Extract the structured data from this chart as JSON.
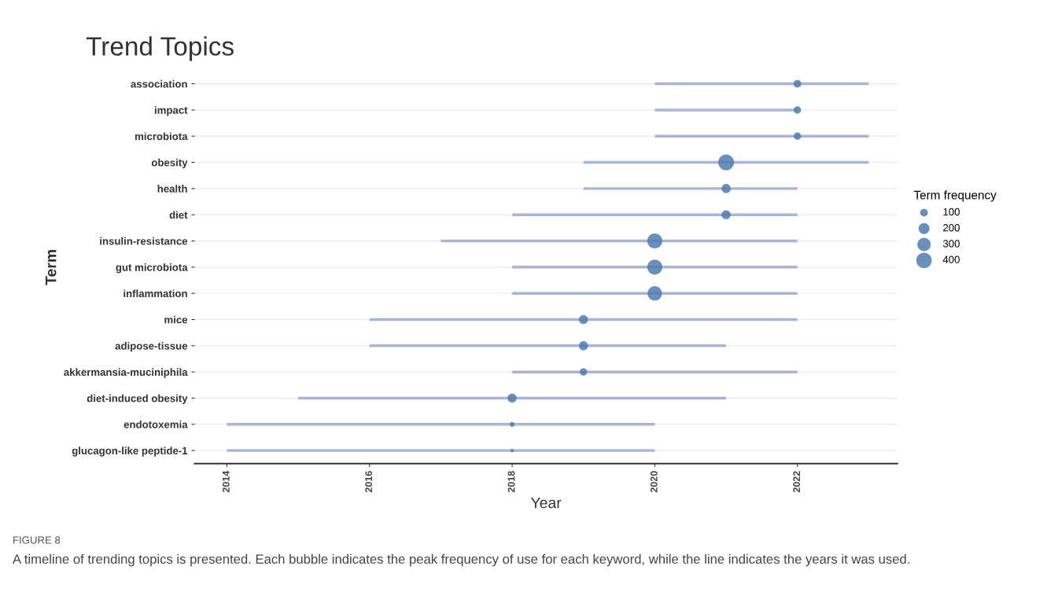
{
  "chart_data": {
    "type": "bubble",
    "title": "Trend Topics",
    "xlabel": "Year",
    "ylabel": "Term",
    "legend_title": "Term frequency",
    "orientation": "horizontal",
    "categories": [
      "association",
      "impact",
      "microbiota",
      "obesity",
      "health",
      "diet",
      "insulin-resistance",
      "gut microbiota",
      "inflammation",
      "mice",
      "adipose-tissue",
      "akkermansia-muciniphila",
      "diet-induced obesity",
      "endotoxemia",
      "glucagon-like peptide-1"
    ],
    "values": [
      2022,
      2022,
      2022,
      2021,
      2021,
      2021,
      2020,
      2020,
      2020,
      2019,
      2019,
      2019,
      2018,
      2018,
      2018
    ],
    "errors": [
      [
        2020,
        2023
      ],
      [
        2020,
        2022
      ],
      [
        2020,
        2023
      ],
      [
        2019,
        2023
      ],
      [
        2019,
        2022
      ],
      [
        2018,
        2022
      ],
      [
        2017,
        2022
      ],
      [
        2018,
        2022
      ],
      [
        2018,
        2022
      ],
      [
        2016,
        2022
      ],
      [
        2016,
        2021
      ],
      [
        2018,
        2022
      ],
      [
        2015,
        2021
      ],
      [
        2014,
        2020
      ],
      [
        2014,
        2020
      ]
    ],
    "sizes": [
      100,
      90,
      90,
      420,
      140,
      140,
      380,
      380,
      350,
      140,
      140,
      90,
      140,
      40,
      20
    ],
    "size_legend": [
      100,
      200,
      300,
      400
    ],
    "color": "#4f7bb0",
    "xlim": [
      2013.55,
      2023.4
    ],
    "xticks": [
      2014,
      2016,
      2018,
      2020,
      2022
    ],
    "grid": "y",
    "annotations": [
      "FIGURE 8",
      "A timeline of trending topics is presented. Each bubble indicates the peak frequency of use for each keyword, while the line indicates the years it was used."
    ]
  }
}
